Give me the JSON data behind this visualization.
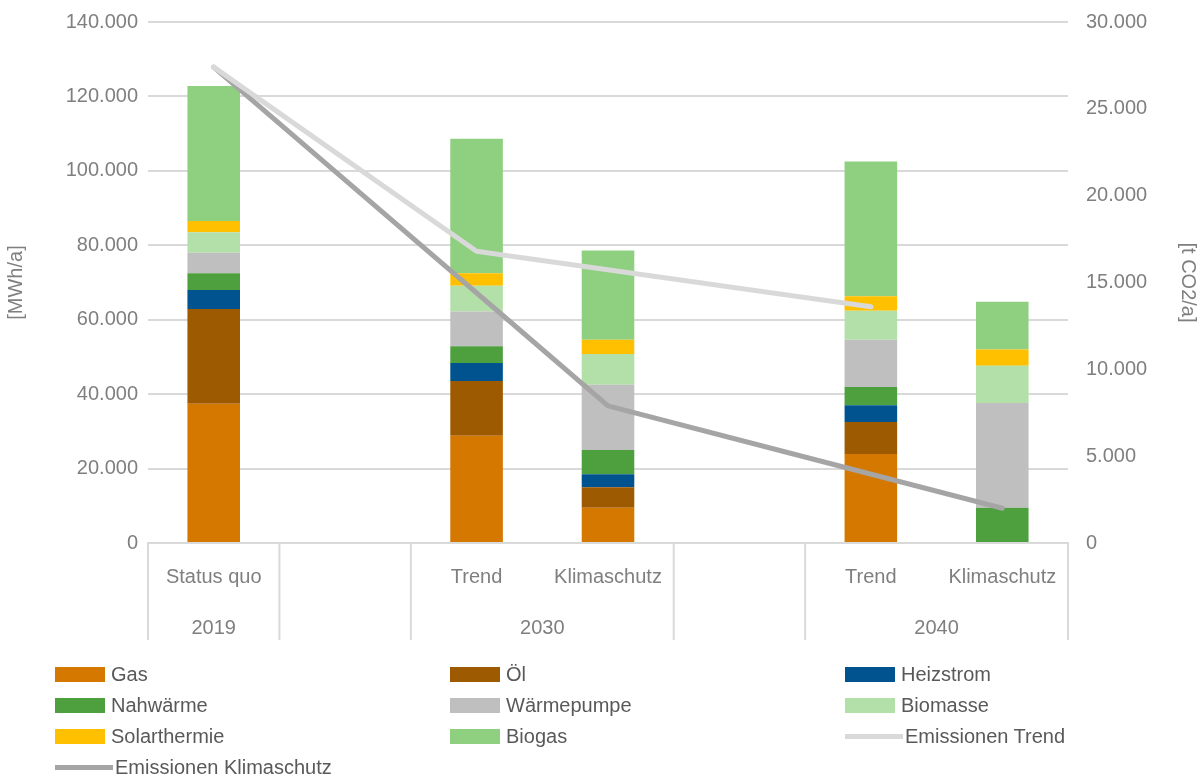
{
  "chart_data": {
    "type": "bar",
    "stacked": true,
    "ylabel": "[MWh/a]",
    "y2label": "[t CO2/a]",
    "categories": [
      "Status quo",
      null,
      "Trend",
      "Klimaschutz",
      null,
      "Trend",
      "Klimaschutz"
    ],
    "annotations": [
      "2019",
      "2030",
      "2040"
    ],
    "ylim": [
      0,
      140000
    ],
    "yticks": [
      {
        "value": 0,
        "label": "0"
      },
      {
        "value": 20000,
        "label": "20.000"
      },
      {
        "value": 40000,
        "label": "40.000"
      },
      {
        "value": 60000,
        "label": "60.000"
      },
      {
        "value": 80000,
        "label": "80.000"
      },
      {
        "value": 100000,
        "label": "100.000"
      },
      {
        "value": 120000,
        "label": "120.000"
      },
      {
        "value": 140000,
        "label": "140.000"
      }
    ],
    "y2lim": [
      0,
      30000
    ],
    "y2ticks": [
      {
        "value": 0,
        "label": "0"
      },
      {
        "value": 5000,
        "label": "5.000"
      },
      {
        "value": 10000,
        "label": "10.000"
      },
      {
        "value": 15000,
        "label": "15.000"
      },
      {
        "value": 20000,
        "label": "20.000"
      },
      {
        "value": 25000,
        "label": "25.000"
      },
      {
        "value": 30000,
        "label": "30.000"
      }
    ],
    "grid": "y",
    "legend": "bottom",
    "marker": "none",
    "series": [
      {
        "name": "Gas",
        "color": "#d47800",
        "values": [
          37400,
          null,
          28800,
          9500,
          null,
          23900,
          0
        ]
      },
      {
        "name": "Öl",
        "color": "#9e5a00",
        "values": [
          25500,
          null,
          14700,
          5500,
          null,
          8600,
          0
        ]
      },
      {
        "name": "Heizstrom",
        "color": "#00538f",
        "values": [
          5100,
          null,
          4900,
          3500,
          null,
          4500,
          0
        ]
      },
      {
        "name": "Nahwärme",
        "color": "#4ea03e",
        "values": [
          4500,
          null,
          4500,
          6500,
          null,
          4900,
          9500
        ]
      },
      {
        "name": "Wärmepumpe",
        "color": "#bfbfbf",
        "values": [
          5500,
          null,
          9300,
          17500,
          null,
          12700,
          28100
        ]
      },
      {
        "name": "Biomasse",
        "color": "#b3dfa8",
        "values": [
          5500,
          null,
          6900,
          8300,
          null,
          7800,
          10000
        ]
      },
      {
        "name": "Solarthermie",
        "color": "#ffc000",
        "values": [
          3000,
          null,
          3400,
          3800,
          null,
          3900,
          4400
        ]
      },
      {
        "name": "Biogas",
        "color": "#8ecf80",
        "values": [
          36300,
          null,
          36100,
          24000,
          null,
          36200,
          12800
        ]
      },
      {
        "name": "Emissionen Trend",
        "type": "line",
        "axis": "y2",
        "color": "#d9d9d9",
        "values": [
          27400,
          null,
          16800,
          null,
          null,
          13600,
          null
        ]
      },
      {
        "name": "Emissionen Klimaschutz",
        "type": "line",
        "axis": "y2",
        "color": "#a5a5a5",
        "values": [
          27400,
          null,
          null,
          7900,
          null,
          null,
          2000
        ]
      }
    ]
  }
}
